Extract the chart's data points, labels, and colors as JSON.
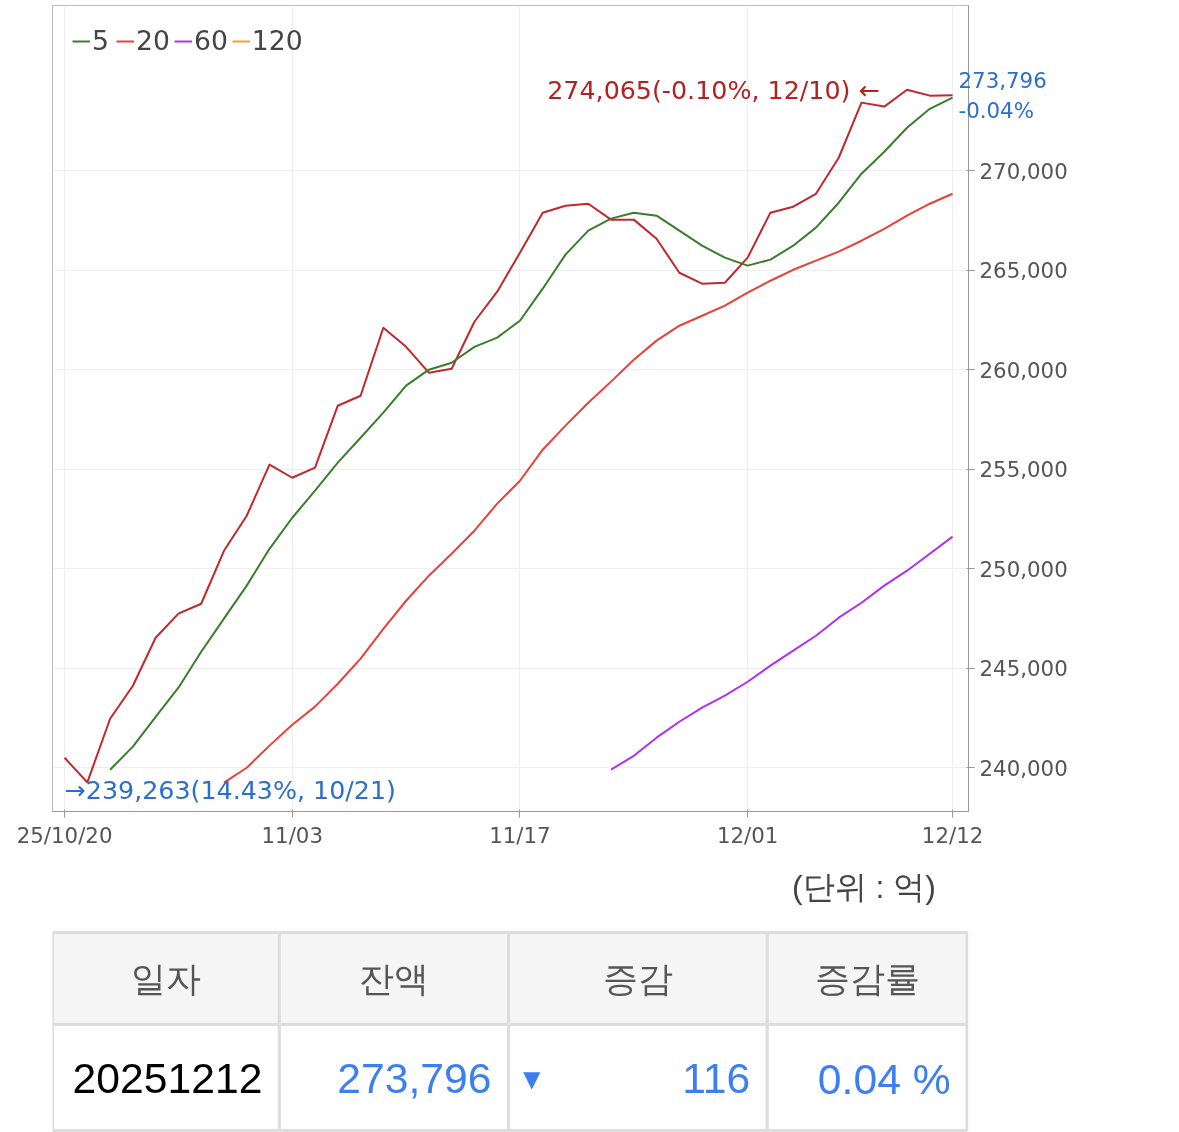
{
  "chart_data": {
    "type": "line",
    "categories": [
      "25/10/20",
      null,
      null,
      null,
      null,
      null,
      null,
      null,
      null,
      null,
      "11/03",
      null,
      null,
      null,
      null,
      null,
      null,
      null,
      null,
      null,
      "11/17",
      null,
      null,
      null,
      null,
      null,
      null,
      null,
      null,
      null,
      "12/01",
      null,
      null,
      null,
      null,
      null,
      null,
      null,
      null,
      "12/12"
    ],
    "series": [
      {
        "color": "#c0282d",
        "values": [
          240500,
          239263,
          242460,
          244120,
          246530,
          247740,
          248240,
          250900,
          252660,
          255230,
          254570,
          255080,
          258190,
          258690,
          262110,
          261150,
          259850,
          260050,
          262410,
          263920,
          265880,
          267890,
          268240,
          268340,
          267540,
          267540,
          266580,
          264870,
          264320,
          264370,
          265630,
          267890,
          268190,
          268840,
          270650,
          273420,
          273220,
          274065,
          273770,
          273796
        ]
      },
      {
        "name": "5",
        "color": "#3a7d2c",
        "values": [
          null,
          null,
          239900,
          241060,
          242560,
          244020,
          245830,
          247490,
          249150,
          251000,
          252560,
          253920,
          255330,
          256580,
          257840,
          259200,
          260000,
          260350,
          261150,
          261610,
          262460,
          264070,
          265780,
          266990,
          267590,
          267890,
          267740,
          266990,
          266230,
          265630,
          265230,
          265530,
          266230,
          267140,
          268390,
          269850,
          270950,
          272160,
          273110,
          273670
        ]
      },
      {
        "name": "20",
        "color": "#e8403a",
        "values": [
          null,
          null,
          null,
          null,
          null,
          null,
          null,
          239250,
          240000,
          241110,
          242160,
          243070,
          244220,
          245480,
          246980,
          248390,
          249650,
          250750,
          251910,
          253270,
          254420,
          255980,
          257190,
          258340,
          259400,
          260500,
          261460,
          262210,
          262710,
          263220,
          263870,
          264470,
          265020,
          265480,
          265930,
          266480,
          267080,
          267740,
          268340,
          268840
        ]
      },
      {
        "name": "60",
        "color": "#b030f0",
        "values": [
          null,
          null,
          null,
          null,
          null,
          null,
          null,
          null,
          null,
          null,
          null,
          null,
          null,
          null,
          null,
          null,
          null,
          null,
          null,
          null,
          null,
          null,
          null,
          null,
          239900,
          240600,
          241510,
          242310,
          243020,
          243620,
          244320,
          245130,
          245880,
          246630,
          247540,
          248290,
          249150,
          249900,
          250750,
          251610
        ]
      },
      {
        "name": "120",
        "color": "#f4a030",
        "values": [
          null,
          null,
          null,
          null,
          null,
          null,
          null,
          null,
          null,
          null,
          null,
          null,
          null,
          null,
          null,
          null,
          null,
          null,
          null,
          null,
          null,
          null,
          null,
          null,
          null,
          null,
          null,
          null,
          null,
          null,
          null,
          null,
          null,
          null,
          null,
          null,
          null,
          null,
          null,
          null
        ]
      }
    ],
    "ylim": [
      237800,
      278300
    ],
    "yticks": [
      {
        "value": 240000,
        "label": "240,000"
      },
      {
        "value": 245000,
        "label": "245,000"
      },
      {
        "value": 250000,
        "label": "250,000"
      },
      {
        "value": 255000,
        "label": "255,000"
      },
      {
        "value": 260000,
        "label": "260,000"
      },
      {
        "value": 265000,
        "label": "265,000"
      },
      {
        "value": 270000,
        "label": "270,000"
      }
    ],
    "grid": true,
    "legend": "top left",
    "marker": "none",
    "line_style": "solid",
    "annotations": [
      "274,065(-0.10%, 12/10) ←",
      {
        "text": "→239,263(14.43%, 10/21)",
        "y": 239263
      },
      "273,796",
      "-0.04%",
      "(단위 : 억)",
      "일자",
      "잔액",
      "증감",
      "증감률",
      "20251212",
      "273,796",
      "▼",
      "116",
      "0.04 %"
    ]
  }
}
